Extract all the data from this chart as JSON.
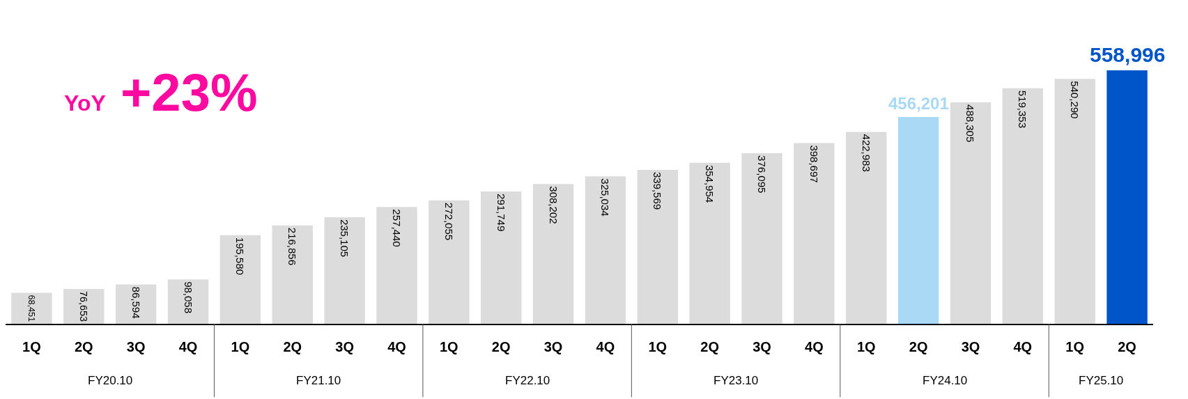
{
  "chart_data": {
    "type": "bar",
    "categories": [
      "1Q",
      "2Q",
      "3Q",
      "4Q",
      "1Q",
      "2Q",
      "3Q",
      "4Q",
      "1Q",
      "2Q",
      "3Q",
      "4Q",
      "1Q",
      "2Q",
      "3Q",
      "4Q",
      "1Q",
      "2Q",
      "3Q",
      "4Q",
      "1Q",
      "2Q"
    ],
    "values": [
      68451,
      76653,
      86594,
      98058,
      195580,
      216856,
      235105,
      257440,
      272055,
      291749,
      308202,
      325034,
      339569,
      354954,
      376095,
      398697,
      422983,
      456201,
      488305,
      519353,
      540290,
      558996
    ],
    "colors": [
      "#dcdcdc",
      "#dcdcdc",
      "#dcdcdc",
      "#dcdcdc",
      "#dcdcdc",
      "#dcdcdc",
      "#dcdcdc",
      "#dcdcdc",
      "#dcdcdc",
      "#dcdcdc",
      "#dcdcdc",
      "#dcdcdc",
      "#dcdcdc",
      "#dcdcdc",
      "#dcdcdc",
      "#dcdcdc",
      "#dcdcdc",
      "#a9d9f5",
      "#dcdcdc",
      "#dcdcdc",
      "#dcdcdc",
      "#0055c8"
    ],
    "value_labels": [
      "68,451",
      "76,653",
      "86,594",
      "98,058",
      "195,580",
      "216,856",
      "235,105",
      "257,440",
      "272,055",
      "291,749",
      "308,202",
      "325,034",
      "339,569",
      "354,954",
      "376,095",
      "398,697",
      "422,983",
      "456,201",
      "488,305",
      "519,353",
      "540,290",
      "558,996"
    ],
    "annotations": [
      "YoY +23%",
      "FY20.10",
      "FY21.10",
      "FY22.10",
      "FY23.10",
      "FY24.10",
      "FY25.10"
    ],
    "legend": false
  }
}
